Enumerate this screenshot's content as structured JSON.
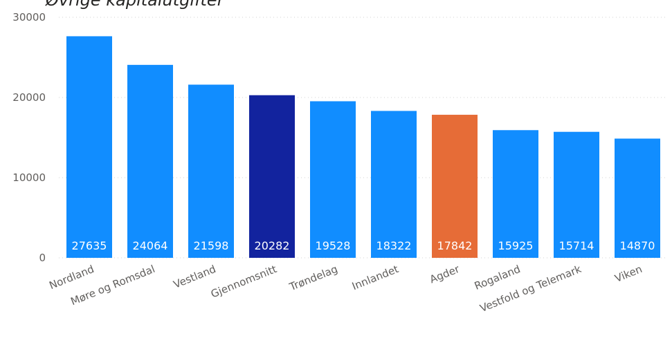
{
  "chart_data": {
    "type": "bar",
    "title": "Øvrige kapitalutgifter",
    "categories": [
      "Nordland",
      "Møre og Romsdal",
      "Vestland",
      "Gjennomsnitt",
      "Trøndelag",
      "Innlandet",
      "Agder",
      "Rogaland",
      "Vestfold og Telemark",
      "Viken"
    ],
    "values": [
      27635,
      24064,
      21598,
      20282,
      19528,
      18322,
      17842,
      15925,
      15714,
      14870
    ],
    "bar_colors": [
      "#118dff",
      "#118dff",
      "#118dff",
      "#12239e",
      "#118dff",
      "#118dff",
      "#e66c37",
      "#118dff",
      "#118dff",
      "#118dff"
    ],
    "ylim": [
      0,
      30000
    ],
    "yticks": [
      0,
      10000,
      20000,
      30000
    ],
    "data_labels": true,
    "grid": true,
    "legend": "none",
    "xlabel": "",
    "ylabel": ""
  },
  "colors": {
    "default_bar": "#118dff",
    "average_bar": "#12239e",
    "highlight_bar": "#e66c37"
  }
}
